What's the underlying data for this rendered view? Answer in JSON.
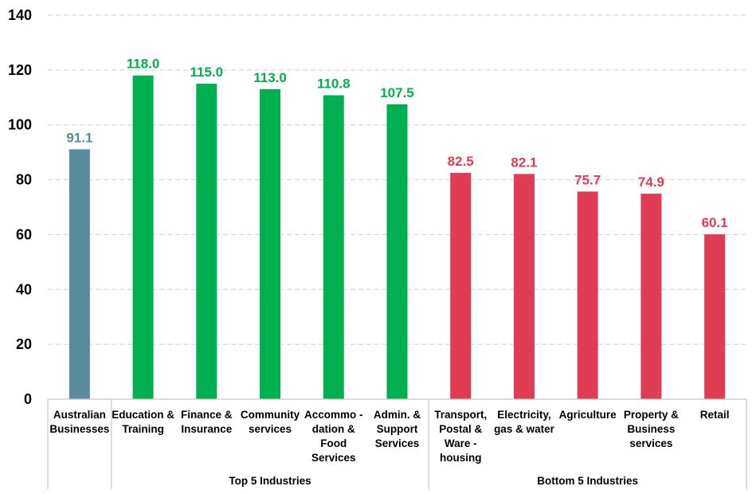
{
  "chart_data": {
    "type": "bar",
    "title": "",
    "xlabel": "",
    "ylabel": "",
    "ylim": [
      0,
      140
    ],
    "yticks": [
      0,
      20,
      40,
      60,
      80,
      100,
      120,
      140
    ],
    "grid": true,
    "categories": [
      [
        "Australian",
        "Businesses"
      ],
      [
        "Education &",
        "Training"
      ],
      [
        "Finance &",
        "Insurance"
      ],
      [
        "Community",
        "services"
      ],
      [
        "Accommo -",
        "dation &",
        "Food",
        "Services"
      ],
      [
        "Admin. &",
        "Support",
        "Services"
      ],
      [
        "Transport,",
        "Postal &",
        "Ware -",
        "housing"
      ],
      [
        "Electricity,",
        "gas & water"
      ],
      [
        "Agriculture"
      ],
      [
        "Property &",
        "Business",
        "services"
      ],
      [
        "Retail"
      ]
    ],
    "values": [
      91.1,
      118.0,
      115.0,
      113.0,
      110.8,
      107.5,
      82.5,
      82.1,
      75.7,
      74.9,
      60.1
    ],
    "value_labels": [
      "91.1",
      "118.0",
      "115.0",
      "113.0",
      "110.8",
      "107.5",
      "82.5",
      "82.1",
      "75.7",
      "74.9",
      "60.1"
    ],
    "groups": [
      {
        "label": "",
        "start": 0,
        "end": 0
      },
      {
        "label": "Top 5 Industries",
        "start": 1,
        "end": 5
      },
      {
        "label": "Bottom 5 Industries",
        "start": 6,
        "end": 10
      }
    ],
    "bar_colors": [
      "#5b8a9e",
      "#00b050",
      "#00b050",
      "#00b050",
      "#00b050",
      "#00b050",
      "#e03c52",
      "#e03c52",
      "#e03c52",
      "#e03c52",
      "#e03c52"
    ],
    "label_colors": [
      "#5b8a9e",
      "#00b050",
      "#00b050",
      "#00b050",
      "#00b050",
      "#00b050",
      "#e03c52",
      "#e03c52",
      "#e03c52",
      "#e03c52",
      "#e03c52"
    ]
  }
}
